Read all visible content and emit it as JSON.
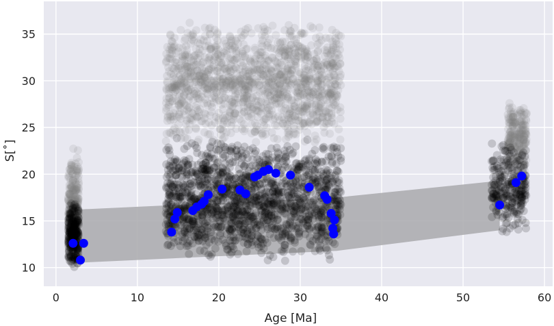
{
  "chart_data": {
    "type": "scatter",
    "xlabel": "Age [Ma]",
    "ylabel": "S[˚]",
    "xlim": [
      -1.5,
      61
    ],
    "ylim": [
      8,
      38.5
    ],
    "xticks": [
      "0",
      "10",
      "20",
      "30",
      "40",
      "50",
      "60"
    ],
    "xtick_values": [
      0,
      10,
      20,
      30,
      40,
      50,
      60
    ],
    "yticks": [
      "10",
      "15",
      "20",
      "25",
      "30",
      "35"
    ],
    "ytick_values": [
      10,
      15,
      20,
      25,
      30,
      35
    ],
    "grid": true,
    "colors": {
      "background": "#e8e8f0",
      "grid": "#ffffff",
      "band": "#a9a9ad",
      "gray_cloud": "#808080",
      "black_cloud": "#000000",
      "points": "#0000ff"
    },
    "band": {
      "upper": [
        [
          2.2,
          16.2
        ],
        [
          34.5,
          17.5
        ],
        [
          54.5,
          19.3
        ]
      ],
      "lower": [
        [
          2.2,
          10.5
        ],
        [
          34.5,
          11.8
        ],
        [
          54.5,
          14.0
        ]
      ]
    },
    "gray_clouds": [
      {
        "x_range": [
          1.5,
          2.8
        ],
        "y_range": [
          11,
          23
        ]
      },
      {
        "x_range": [
          13.5,
          35
        ],
        "y_range": [
          23,
          36.5
        ]
      },
      {
        "x_range": [
          55.5,
          57.8
        ],
        "y_range": [
          20,
          28
        ]
      }
    ],
    "black_clouds": [
      {
        "x_range": [
          1.5,
          2.8
        ],
        "y_range": [
          10,
          17
        ]
      },
      {
        "x_range": [
          13.5,
          35
        ],
        "y_range": [
          10.5,
          24
        ]
      },
      {
        "x_range": [
          53.5,
          57.8
        ],
        "y_range": [
          13.5,
          24
        ]
      }
    ],
    "points": [
      {
        "x": 2.1,
        "y": 12.6
      },
      {
        "x": 3.0,
        "y": 10.8
      },
      {
        "x": 3.4,
        "y": 12.6
      },
      {
        "x": 14.2,
        "y": 13.8
      },
      {
        "x": 14.6,
        "y": 15.2
      },
      {
        "x": 14.9,
        "y": 15.9
      },
      {
        "x": 16.8,
        "y": 16.1
      },
      {
        "x": 17.3,
        "y": 16.5
      },
      {
        "x": 17.9,
        "y": 16.8
      },
      {
        "x": 18.2,
        "y": 17.1
      },
      {
        "x": 18.7,
        "y": 17.8
      },
      {
        "x": 20.4,
        "y": 18.4
      },
      {
        "x": 22.6,
        "y": 18.3
      },
      {
        "x": 23.3,
        "y": 17.9
      },
      {
        "x": 24.4,
        "y": 19.7
      },
      {
        "x": 24.8,
        "y": 19.9
      },
      {
        "x": 25.5,
        "y": 20.3
      },
      {
        "x": 26.1,
        "y": 20.5
      },
      {
        "x": 27.0,
        "y": 20.1
      },
      {
        "x": 28.8,
        "y": 19.9
      },
      {
        "x": 31.1,
        "y": 18.6
      },
      {
        "x": 33.0,
        "y": 17.7
      },
      {
        "x": 33.3,
        "y": 17.3
      },
      {
        "x": 33.8,
        "y": 15.8
      },
      {
        "x": 34.2,
        "y": 15.1
      },
      {
        "x": 34.0,
        "y": 14.2
      },
      {
        "x": 34.1,
        "y": 13.6
      },
      {
        "x": 54.5,
        "y": 16.7
      },
      {
        "x": 56.5,
        "y": 19.1
      },
      {
        "x": 57.2,
        "y": 19.8
      }
    ]
  }
}
